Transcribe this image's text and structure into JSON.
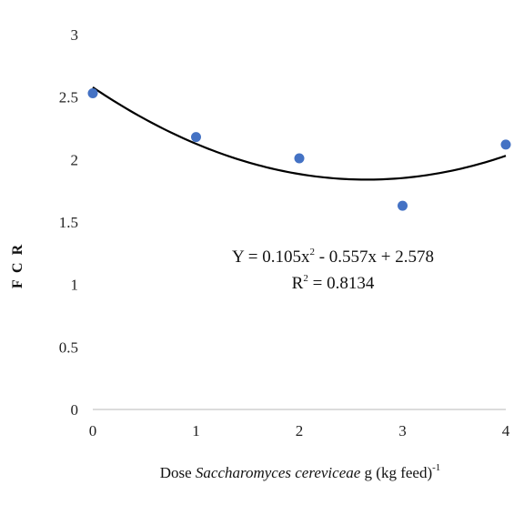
{
  "chart_data": {
    "type": "scatter",
    "title": "",
    "xlabel": {
      "prefix": "Dose ",
      "italic": "Saccharomyces cereviceae",
      "suffix": " g (kg feed)",
      "sup": "-1"
    },
    "ylabel": "F C R",
    "xlim": [
      0,
      4
    ],
    "ylim": [
      0,
      3
    ],
    "x_ticks": [
      "0",
      "1",
      "2",
      "3",
      "4"
    ],
    "y_ticks": [
      "0",
      "0.5",
      "1",
      "1.5",
      "2",
      "2.5",
      "3"
    ],
    "grid": false,
    "series": [
      {
        "x": [
          0,
          1,
          2,
          3,
          4
        ],
        "y": [
          2.53,
          2.18,
          2.01,
          1.63,
          2.12
        ],
        "color": "#4472c4"
      }
    ],
    "trendline": {
      "type": "polynomial",
      "coefficients": [
        0.105,
        -0.557,
        2.578
      ],
      "color": "#000000"
    },
    "annotations": {
      "equation": {
        "prefix": "Y = 0.105x",
        "sup": "2",
        "suffix": " - 0.557x + 2.578"
      },
      "r2": {
        "prefix": "R",
        "sup": "2",
        "suffix": " = 0.8134"
      }
    }
  }
}
